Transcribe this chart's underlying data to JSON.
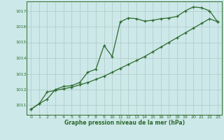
{
  "line1_x": [
    0,
    1,
    2,
    3,
    4,
    5,
    6,
    7,
    8,
    9,
    10,
    11,
    12,
    13,
    14,
    15,
    16,
    17,
    18,
    19,
    20,
    21,
    22,
    23
  ],
  "line1_y": [
    1010.75,
    1011.1,
    1011.4,
    1012.0,
    1012.2,
    1012.25,
    1012.45,
    1013.1,
    1013.3,
    1014.8,
    1014.1,
    1016.3,
    1016.55,
    1016.5,
    1016.35,
    1016.4,
    1016.5,
    1016.55,
    1016.65,
    1017.0,
    1017.25,
    1017.2,
    1017.0,
    1016.3
  ],
  "line2_x": [
    0,
    1,
    2,
    3,
    4,
    5,
    6,
    7,
    8,
    9,
    10,
    11,
    12,
    13,
    14,
    15,
    16,
    17,
    18,
    19,
    20,
    21,
    22,
    23
  ],
  "line2_y": [
    1010.75,
    1011.1,
    1011.85,
    1011.95,
    1012.05,
    1012.15,
    1012.3,
    1012.45,
    1012.65,
    1012.85,
    1013.1,
    1013.35,
    1013.6,
    1013.85,
    1014.1,
    1014.4,
    1014.7,
    1015.0,
    1015.3,
    1015.6,
    1015.9,
    1016.2,
    1016.5,
    1016.3
  ],
  "line_color": "#2d6a2d",
  "bg_color": "#cce8e8",
  "grid_color": "#b0c8c8",
  "xlabel": "Graphe pression niveau de la mer (hPa)",
  "yticks": [
    1011,
    1012,
    1013,
    1014,
    1015,
    1016,
    1017
  ],
  "xticks": [
    0,
    1,
    2,
    3,
    4,
    5,
    6,
    7,
    8,
    9,
    10,
    11,
    12,
    13,
    14,
    15,
    16,
    17,
    18,
    19,
    20,
    21,
    22,
    23
  ],
  "ylim": [
    1010.4,
    1017.6
  ],
  "xlim": [
    -0.5,
    23.5
  ]
}
